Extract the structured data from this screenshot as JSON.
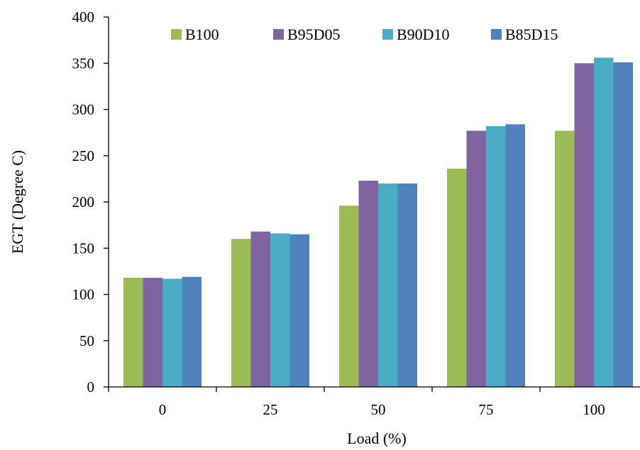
{
  "chart_data": {
    "type": "bar",
    "title": "",
    "xlabel": "Load (%)",
    "ylabel": "EGT (Degree C)",
    "categories": [
      "0",
      "25",
      "50",
      "75",
      "100"
    ],
    "ylim": [
      0,
      400
    ],
    "yticks": [
      0,
      50,
      100,
      150,
      200,
      250,
      300,
      350,
      400
    ],
    "grid": false,
    "legend_position": "top",
    "series": [
      {
        "name": "B100",
        "color": "#9BBB59",
        "values": [
          118,
          160,
          196,
          236,
          277
        ]
      },
      {
        "name": "B95D05",
        "color": "#8064A2",
        "values": [
          118,
          168,
          223,
          277,
          350
        ]
      },
      {
        "name": "B90D10",
        "color": "#4BACC6",
        "values": [
          117,
          166,
          220,
          282,
          356
        ]
      },
      {
        "name": "B85D15",
        "color": "#4F81BD",
        "values": [
          119,
          165,
          220,
          284,
          351
        ]
      }
    ]
  }
}
